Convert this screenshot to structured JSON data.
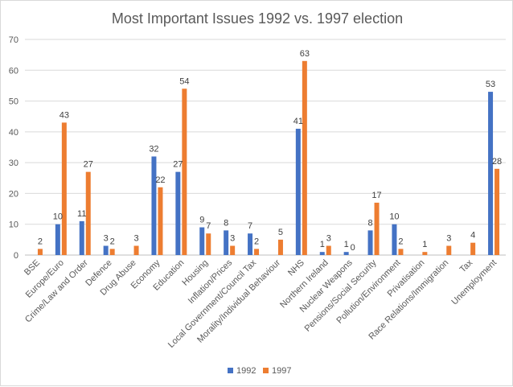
{
  "chart_data": {
    "type": "bar",
    "title": "Most Important Issues 1992 vs. 1997 election",
    "xlabel": "",
    "ylabel": "",
    "ylim": [
      0,
      70
    ],
    "yticks": [
      0,
      10,
      20,
      30,
      40,
      50,
      60,
      70
    ],
    "grid": true,
    "legend_position": "bottom",
    "categories": [
      "BSE",
      "Europe/Euro",
      "Crime/Law and Order",
      "Defence",
      "Drug Abuse",
      "Economy",
      "Education",
      "Housing",
      "Inflation/Prices",
      "Local Government/Council Tax",
      "Morality/Individual Behaviour",
      "NHS",
      "Northern Ireland",
      "Nuclear Weapons",
      "Pensions/Social Security",
      "Pollution/Environment",
      "Privatisation",
      "Race Relations/Immigration",
      "Tax",
      "Unemployment"
    ],
    "series": [
      {
        "name": "1992",
        "color": "#4472c4",
        "values": [
          null,
          10,
          11,
          3,
          null,
          32,
          27,
          9,
          8,
          7,
          null,
          41,
          1,
          1,
          8,
          10,
          null,
          null,
          null,
          53
        ]
      },
      {
        "name": "1997",
        "color": "#ed7d31",
        "values": [
          2,
          43,
          27,
          2,
          3,
          22,
          54,
          7,
          3,
          2,
          5,
          63,
          3,
          0,
          17,
          2,
          1,
          3,
          4,
          28
        ]
      }
    ]
  }
}
